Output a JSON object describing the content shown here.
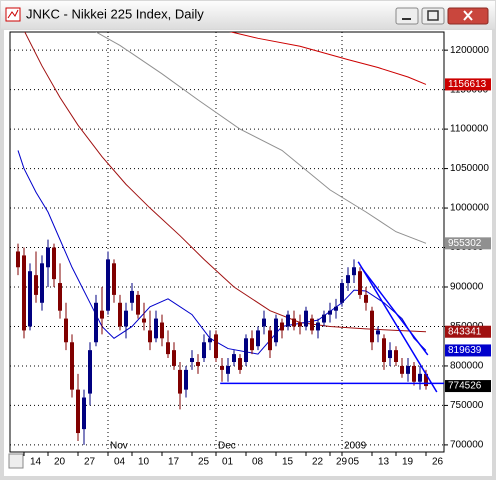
{
  "chart_data": {
    "type": "candlestick",
    "title": "JNKC - Nikkei 225 Index, Daily",
    "categories": [
      null,
      "14",
      null,
      null,
      null,
      "20",
      null,
      null,
      null,
      null,
      "27",
      null,
      null,
      null,
      null,
      "04",
      null,
      null,
      null,
      "10",
      null,
      null,
      null,
      null,
      "17",
      null,
      null,
      null,
      null,
      "25",
      null,
      null,
      null,
      "01",
      null,
      null,
      null,
      null,
      "08",
      null,
      null,
      null,
      null,
      "15",
      null,
      null,
      null,
      null,
      "22",
      null,
      null,
      null,
      "29",
      null,
      "05",
      null,
      null,
      null,
      null,
      "13",
      null,
      null,
      null,
      "19",
      null,
      null,
      null,
      null,
      "26"
    ],
    "months": [
      null,
      null,
      null,
      null,
      null,
      null,
      null,
      null,
      null,
      null,
      null,
      null,
      null,
      null,
      null,
      "Nov",
      null,
      null,
      null,
      null,
      null,
      null,
      null,
      null,
      null,
      null,
      null,
      null,
      null,
      null,
      null,
      null,
      null,
      "Dec",
      null,
      null,
      null,
      null,
      null,
      null,
      null,
      null,
      null,
      null,
      null,
      null,
      null,
      null,
      null,
      null,
      null,
      null,
      null,
      null,
      "2009",
      null,
      null,
      null,
      null,
      null,
      null,
      null,
      null,
      null,
      null,
      null,
      null,
      null,
      null
    ],
    "open": [
      945000,
      940000,
      850000,
      915000,
      880000,
      925000,
      950000,
      905000,
      860000,
      830000,
      770000,
      720000,
      765000,
      830000,
      870000,
      870000,
      930000,
      880000,
      850000,
      880000,
      890000,
      860000,
      845000,
      835000,
      855000,
      830000,
      820000,
      795000,
      770000,
      805000,
      805000,
      810000,
      830000,
      840000,
      800000,
      790000,
      805000,
      810000,
      805000,
      835000,
      825000,
      850000,
      845000,
      830000,
      855000,
      850000,
      860000,
      855000,
      850000,
      860000,
      845000,
      855000,
      865000,
      870000,
      880000,
      905000,
      915000,
      920000,
      890000,
      870000,
      840000,
      835000,
      810000,
      820000,
      800000,
      790000,
      800000,
      780000,
      790000
    ],
    "high": [
      955000,
      950000,
      930000,
      945000,
      940000,
      960000,
      955000,
      930000,
      880000,
      840000,
      790000,
      770000,
      830000,
      890000,
      900000,
      945000,
      935000,
      890000,
      880000,
      905000,
      895000,
      880000,
      870000,
      870000,
      865000,
      845000,
      830000,
      805000,
      800000,
      820000,
      815000,
      840000,
      845000,
      845000,
      810000,
      810000,
      820000,
      815000,
      840000,
      845000,
      850000,
      870000,
      850000,
      865000,
      860000,
      870000,
      870000,
      865000,
      875000,
      865000,
      860000,
      870000,
      880000,
      885000,
      910000,
      925000,
      935000,
      925000,
      900000,
      875000,
      850000,
      840000,
      830000,
      825000,
      810000,
      810000,
      805000,
      800000,
      795000
    ],
    "low": [
      915000,
      835000,
      845000,
      880000,
      870000,
      900000,
      900000,
      860000,
      820000,
      760000,
      705000,
      700000,
      750000,
      825000,
      840000,
      865000,
      880000,
      845000,
      835000,
      870000,
      860000,
      845000,
      820000,
      830000,
      825000,
      810000,
      795000,
      745000,
      760000,
      795000,
      790000,
      805000,
      820000,
      805000,
      780000,
      780000,
      800000,
      790000,
      800000,
      815000,
      820000,
      840000,
      810000,
      825000,
      835000,
      845000,
      845000,
      840000,
      845000,
      840000,
      835000,
      850000,
      855000,
      860000,
      875000,
      895000,
      905000,
      885000,
      870000,
      820000,
      830000,
      795000,
      800000,
      800000,
      785000,
      780000,
      775000,
      770000,
      770000
    ],
    "close": [
      925000,
      845000,
      920000,
      890000,
      930000,
      950000,
      910000,
      870000,
      830000,
      770000,
      715000,
      760000,
      820000,
      880000,
      860000,
      935000,
      890000,
      850000,
      870000,
      895000,
      865000,
      855000,
      830000,
      860000,
      835000,
      815000,
      800000,
      765000,
      795000,
      810000,
      800000,
      830000,
      835000,
      810000,
      795000,
      800000,
      815000,
      795000,
      835000,
      820000,
      845000,
      860000,
      820000,
      860000,
      845000,
      865000,
      850000,
      850000,
      870000,
      845000,
      855000,
      865000,
      870000,
      875000,
      905000,
      915000,
      925000,
      890000,
      880000,
      830000,
      845000,
      805000,
      820000,
      805000,
      790000,
      800000,
      780000,
      790000,
      774526
    ],
    "up_color": "#000080",
    "down_color": "#800000",
    "last_label_color": "#000000",
    "series": [
      {
        "color": "#cc0000",
        "x": [
          35,
          40,
          47,
          55,
          60,
          65,
          68
        ],
        "values": [
          1224000,
          1215000,
          1205000,
          1188000,
          1178000,
          1166000,
          1156613
        ]
      },
      {
        "color": "#909090",
        "x": [
          13,
          17,
          24,
          30,
          37,
          44,
          52,
          58,
          63,
          68
        ],
        "values": [
          1223000,
          1206000,
          1170000,
          1137000,
          1100000,
          1073000,
          1023000,
          995000,
          970000,
          955302
        ]
      },
      {
        "color": "#a01010",
        "x": [
          1,
          4,
          7,
          10,
          14,
          18,
          22,
          27,
          31,
          36,
          42,
          47,
          52,
          58,
          63,
          68
        ],
        "values": [
          1225000,
          1180000,
          1140000,
          1105000,
          1065000,
          1030000,
          1000000,
          965000,
          935000,
          900000,
          870000,
          855000,
          850000,
          847000,
          845000,
          843341
        ]
      },
      {
        "color": "#0000cc",
        "x": [
          0,
          1,
          3,
          5,
          7,
          9,
          12,
          14,
          16,
          19,
          22,
          25,
          29,
          32,
          35,
          40,
          44,
          50,
          54,
          56,
          58,
          61,
          64,
          66,
          68
        ],
        "values": [
          1073000,
          1050000,
          1020000,
          995000,
          960000,
          925000,
          880000,
          850000,
          835000,
          850000,
          875000,
          885000,
          865000,
          835000,
          822000,
          815000,
          850000,
          858000,
          880000,
          896000,
          895000,
          880000,
          860000,
          835000,
          819639
        ]
      }
    ],
    "trendlines": [
      {
        "color": "#0000ff",
        "x": [
          33.7,
          71
        ],
        "values": [
          778000,
          778000
        ]
      },
      {
        "color": "#0000ff",
        "x": [
          56.7,
          69.8
        ],
        "values": [
          932000,
          767000
        ]
      },
      {
        "color": "#0000ff",
        "x": [
          57.3,
          68.3
        ],
        "values": [
          924000,
          814000
        ]
      }
    ],
    "ylim": [
      691000,
      1223000
    ],
    "yticks": [
      700000,
      750000,
      800000,
      850000,
      900000,
      950000,
      1000000,
      1050000,
      1100000,
      1150000,
      1200000
    ],
    "grid": true
  }
}
